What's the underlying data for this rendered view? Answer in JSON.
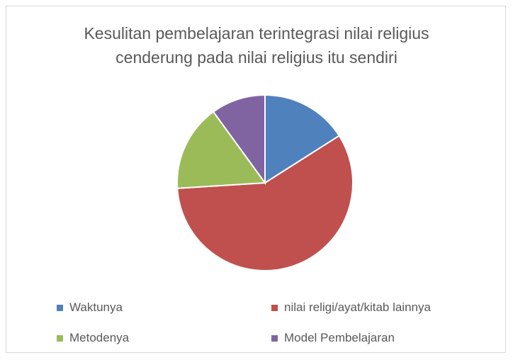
{
  "chart_data": {
    "type": "pie",
    "title": "Kesulitan pembelajaran terintegrasi nilai religius cenderung pada nilai religius itu sendiri",
    "categories": [
      "Waktunya",
      "nilai religi/ayat/kitab lainnya",
      "Metodenya",
      "Model Pembelajaran"
    ],
    "values": [
      16,
      58,
      16,
      10
    ],
    "colors": [
      "#4f81bd",
      "#c0504d",
      "#9bbb59",
      "#8064a2"
    ],
    "legend": "bottom"
  }
}
